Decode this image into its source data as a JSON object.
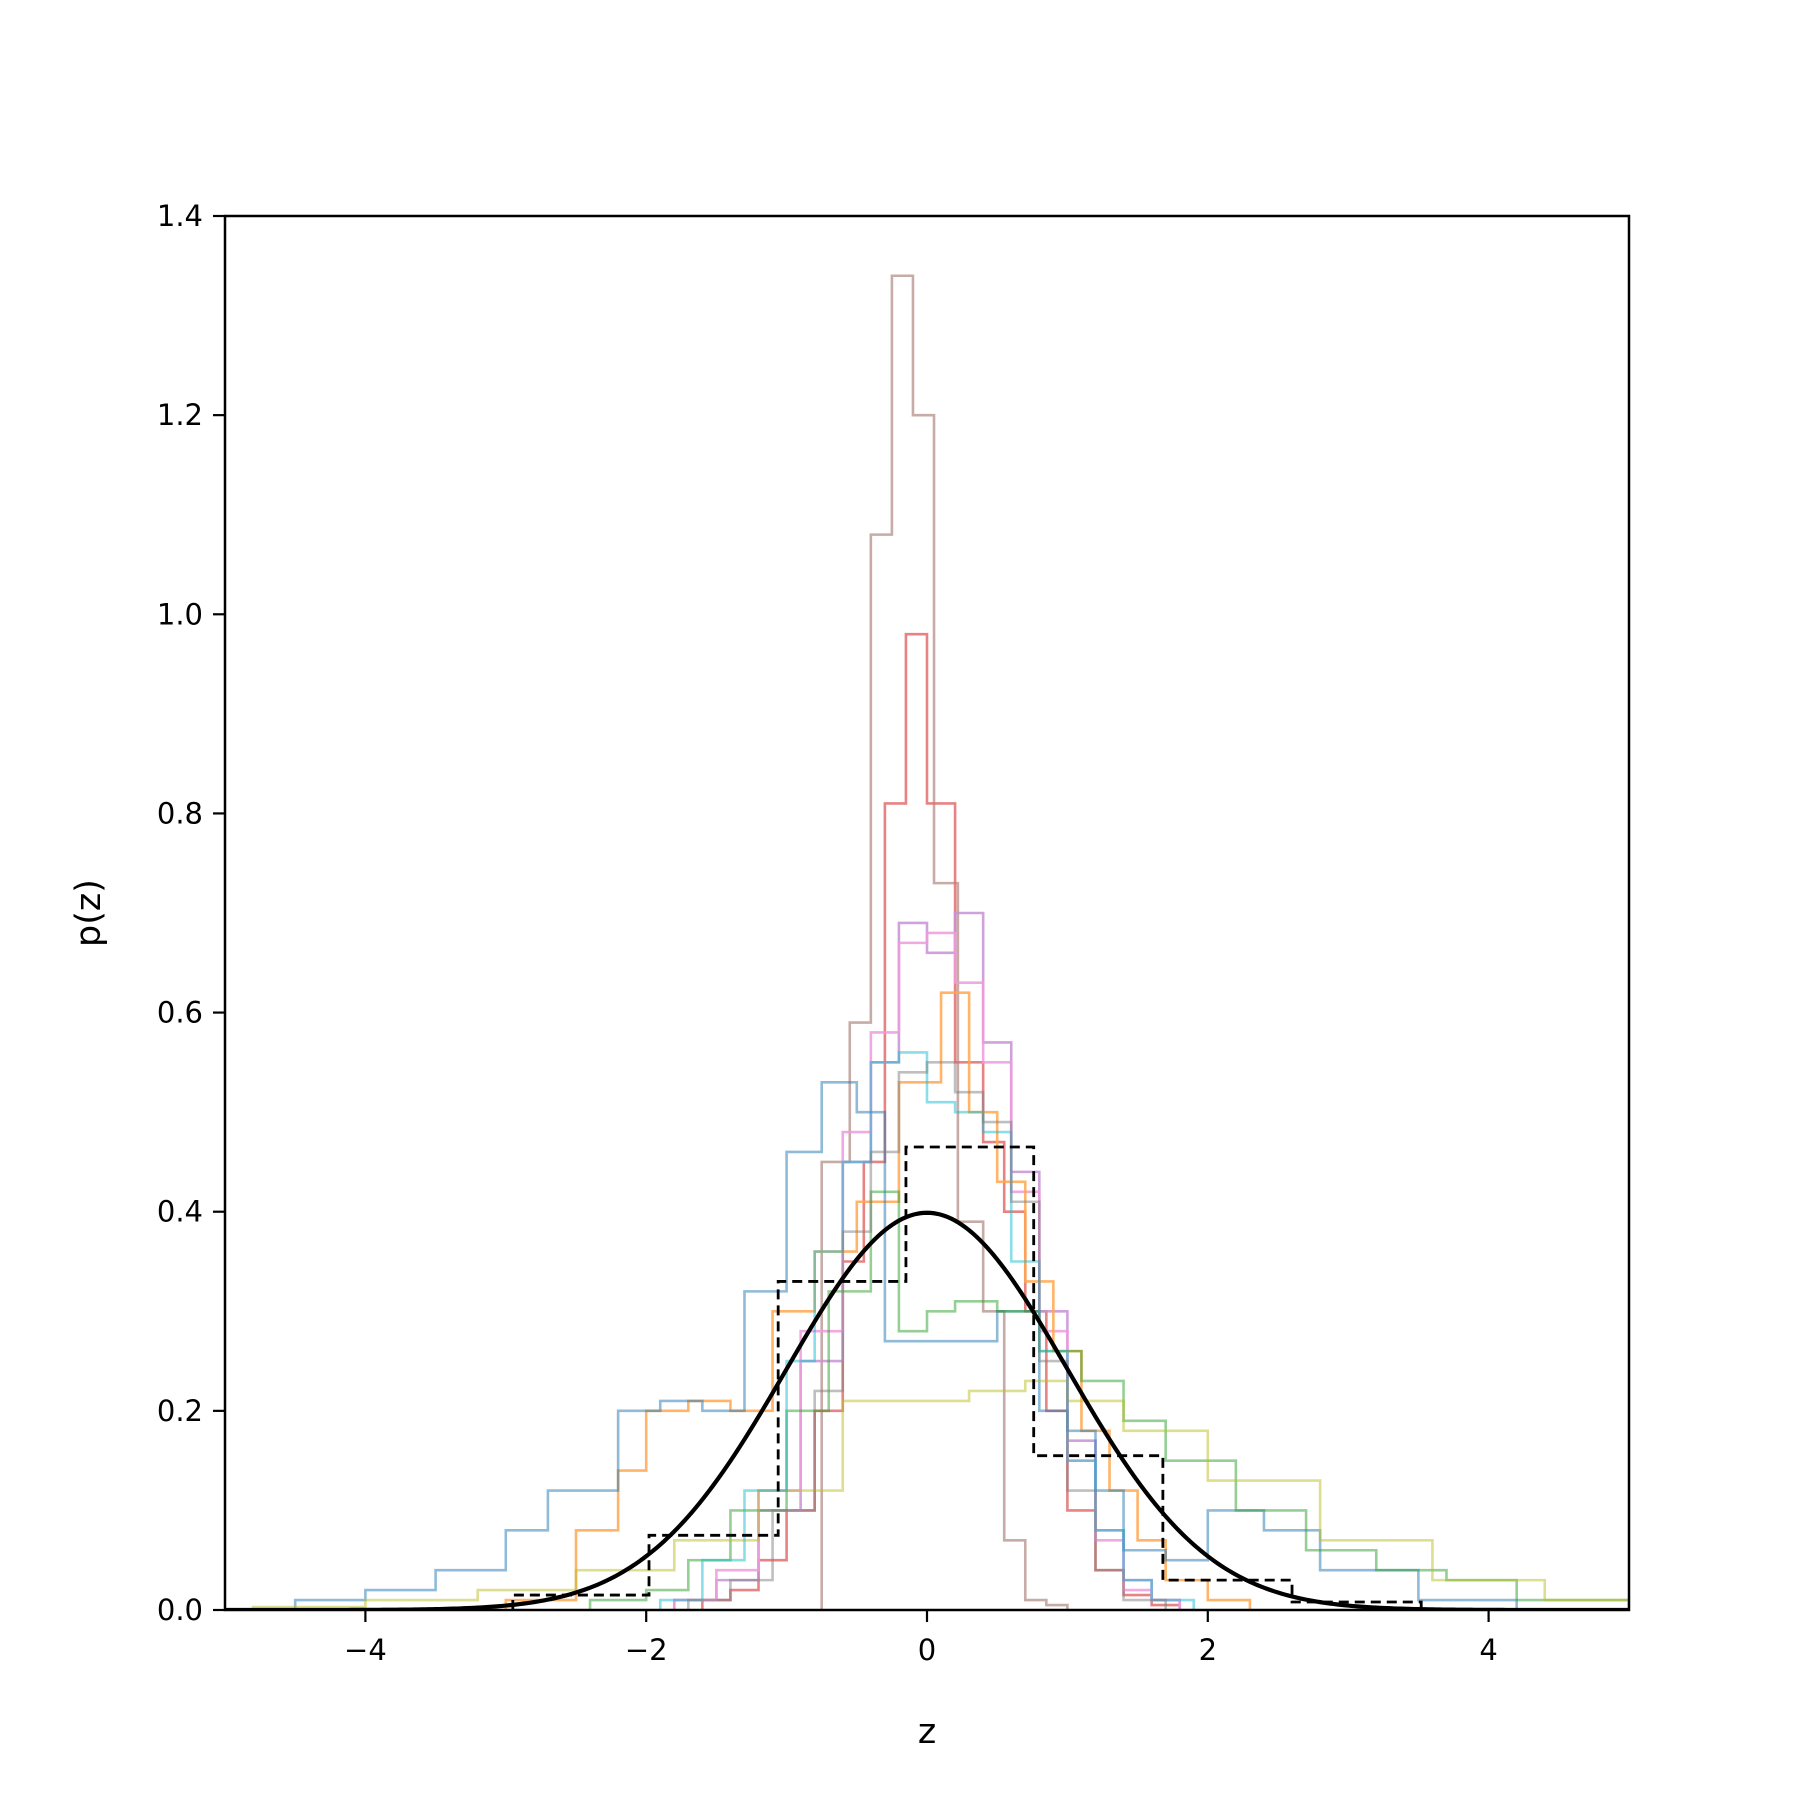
{
  "chart_data": {
    "type": "line",
    "xlabel": "z",
    "ylabel": "p(z)",
    "xlim": [
      -5,
      5
    ],
    "ylim": [
      0,
      1.4
    ],
    "x_ticks": [
      -4,
      -2,
      0,
      2,
      4
    ],
    "y_ticks": [
      0.0,
      0.2,
      0.4,
      0.6,
      0.8,
      1.0,
      1.2,
      1.4
    ],
    "x_tick_labels": [
      "−4",
      "−2",
      "0",
      "2",
      "4"
    ],
    "y_tick_labels": [
      "0.0",
      "0.2",
      "0.4",
      "0.6",
      "0.8",
      "1.0",
      "1.2",
      "1.4"
    ],
    "grid": false,
    "series": [
      {
        "kind": "curve",
        "style": "solid",
        "color": "#000000",
        "function": "standard normal pdf",
        "mean": 0,
        "std": 1
      },
      {
        "kind": "step",
        "style": "dashed",
        "color": "#000000",
        "edges": [
          -2.95,
          -1.98,
          -1.06,
          -0.15,
          0.76,
          1.68,
          2.6,
          3.52
        ],
        "values": [
          0.015,
          0.075,
          0.33,
          0.465,
          0.155,
          0.03,
          0.008
        ]
      },
      {
        "kind": "step",
        "style": "solid",
        "color": "#bc9c96",
        "opacity": 0.85,
        "edges": [
          -0.75,
          -0.55,
          -0.4,
          -0.25,
          -0.1,
          0.05,
          0.22,
          0.4,
          0.55,
          0.7,
          0.85,
          1.0
        ],
        "values": [
          0.45,
          0.59,
          1.08,
          1.34,
          1.2,
          0.73,
          0.39,
          0.3,
          0.07,
          0.01,
          0.005
        ]
      },
      {
        "kind": "step",
        "style": "solid",
        "color": "#e36d6d",
        "opacity": 0.85,
        "edges": [
          -1.6,
          -1.4,
          -1.2,
          -1.0,
          -0.8,
          -0.6,
          -0.45,
          -0.3,
          -0.15,
          0.0,
          0.2,
          0.4,
          0.55,
          0.7,
          0.85,
          1.0,
          1.2,
          1.4,
          1.6,
          1.8
        ],
        "values": [
          0.01,
          0.02,
          0.05,
          0.1,
          0.2,
          0.35,
          0.45,
          0.81,
          0.98,
          0.81,
          0.55,
          0.47,
          0.4,
          0.3,
          0.2,
          0.1,
          0.04,
          0.015,
          0.005
        ]
      },
      {
        "kind": "step",
        "style": "solid",
        "color": "#c892d6",
        "opacity": 0.85,
        "edges": [
          -1.8,
          -1.5,
          -1.2,
          -0.9,
          -0.6,
          -0.4,
          -0.2,
          0.0,
          0.2,
          0.4,
          0.6,
          0.8,
          1.0,
          1.2,
          1.4,
          1.6,
          1.8
        ],
        "values": [
          0.01,
          0.03,
          0.1,
          0.25,
          0.45,
          0.55,
          0.69,
          0.66,
          0.7,
          0.57,
          0.44,
          0.3,
          0.17,
          0.08,
          0.03,
          0.01
        ]
      },
      {
        "kind": "step",
        "style": "solid",
        "color": "#ef9adc",
        "opacity": 0.85,
        "edges": [
          -1.8,
          -1.5,
          -1.2,
          -0.9,
          -0.6,
          -0.4,
          -0.2,
          0.0,
          0.2,
          0.4,
          0.6,
          0.8,
          1.0,
          1.2,
          1.4,
          1.6,
          1.8
        ],
        "values": [
          0.01,
          0.04,
          0.12,
          0.28,
          0.48,
          0.58,
          0.67,
          0.68,
          0.63,
          0.55,
          0.42,
          0.28,
          0.15,
          0.07,
          0.02,
          0.01
        ]
      },
      {
        "kind": "step",
        "style": "solid",
        "color": "#ffa74f",
        "opacity": 0.85,
        "edges": [
          -3.0,
          -2.5,
          -2.2,
          -2.0,
          -1.7,
          -1.4,
          -1.1,
          -0.8,
          -0.5,
          -0.2,
          0.1,
          0.3,
          0.5,
          0.7,
          0.9,
          1.1,
          1.3,
          1.5,
          1.7,
          2.0,
          2.3
        ],
        "values": [
          0.01,
          0.08,
          0.14,
          0.2,
          0.21,
          0.2,
          0.3,
          0.36,
          0.41,
          0.53,
          0.62,
          0.5,
          0.43,
          0.33,
          0.26,
          0.18,
          0.12,
          0.07,
          0.03,
          0.01
        ]
      },
      {
        "kind": "step",
        "style": "solid",
        "color": "#1f77b4",
        "opacity": 0.5,
        "edges": [
          -4.5,
          -4.0,
          -3.5,
          -3.0,
          -2.7,
          -2.4,
          -2.2,
          -1.9,
          -1.6,
          -1.3,
          -1.0,
          -0.75,
          -0.5,
          -0.3,
          -0.1,
          0.2,
          0.5,
          0.8,
          1.0,
          1.2,
          1.4,
          1.7,
          2.0,
          2.4,
          2.8,
          3.5,
          4.2
        ],
        "values": [
          0.01,
          0.02,
          0.04,
          0.08,
          0.12,
          0.12,
          0.2,
          0.21,
          0.2,
          0.32,
          0.46,
          0.53,
          0.5,
          0.27,
          0.27,
          0.27,
          0.3,
          0.2,
          0.18,
          0.12,
          0.06,
          0.05,
          0.1,
          0.08,
          0.04,
          0.01
        ]
      },
      {
        "kind": "step",
        "style": "solid",
        "color": "#2ca02c",
        "opacity": 0.5,
        "edges": [
          -2.4,
          -2.0,
          -1.7,
          -1.4,
          -1.0,
          -0.7,
          -0.4,
          -0.2,
          0.0,
          0.2,
          0.5,
          0.8,
          1.1,
          1.4,
          1.7,
          2.2,
          2.7,
          3.2,
          3.7,
          4.2,
          5.0
        ],
        "values": [
          0.01,
          0.02,
          0.05,
          0.1,
          0.2,
          0.32,
          0.42,
          0.28,
          0.3,
          0.31,
          0.3,
          0.26,
          0.23,
          0.19,
          0.15,
          0.1,
          0.06,
          0.04,
          0.03,
          0.01
        ]
      },
      {
        "kind": "step",
        "style": "solid",
        "color": "#bcbd22",
        "opacity": 0.5,
        "edges": [
          -4.8,
          -4.0,
          -3.2,
          -2.5,
          -1.8,
          -1.2,
          -0.6,
          -0.2,
          0.3,
          0.7,
          1.0,
          1.4,
          2.0,
          2.8,
          3.6,
          4.4,
          5.0
        ],
        "values": [
          0.003,
          0.01,
          0.02,
          0.04,
          0.07,
          0.12,
          0.21,
          0.21,
          0.22,
          0.23,
          0.21,
          0.18,
          0.13,
          0.07,
          0.03,
          0.01
        ]
      },
      {
        "kind": "step",
        "style": "solid",
        "color": "#17becf",
        "opacity": 0.5,
        "edges": [
          -1.9,
          -1.6,
          -1.3,
          -1.0,
          -0.8,
          -0.6,
          -0.4,
          -0.2,
          0.0,
          0.2,
          0.4,
          0.6,
          0.8,
          1.0,
          1.2,
          1.4,
          1.6,
          1.9
        ],
        "values": [
          0.01,
          0.05,
          0.12,
          0.25,
          0.36,
          0.45,
          0.55,
          0.56,
          0.51,
          0.5,
          0.48,
          0.35,
          0.26,
          0.15,
          0.08,
          0.03,
          0.01
        ]
      },
      {
        "kind": "step",
        "style": "solid",
        "color": "#7f7f7f",
        "opacity": 0.5,
        "edges": [
          -1.7,
          -1.4,
          -1.1,
          -0.8,
          -0.6,
          -0.4,
          -0.2,
          0.0,
          0.2,
          0.4,
          0.6,
          0.8,
          1.0,
          1.2,
          1.4,
          1.7
        ],
        "values": [
          0.01,
          0.03,
          0.1,
          0.22,
          0.38,
          0.46,
          0.54,
          0.55,
          0.52,
          0.49,
          0.41,
          0.25,
          0.12,
          0.04,
          0.01
        ]
      }
    ]
  }
}
